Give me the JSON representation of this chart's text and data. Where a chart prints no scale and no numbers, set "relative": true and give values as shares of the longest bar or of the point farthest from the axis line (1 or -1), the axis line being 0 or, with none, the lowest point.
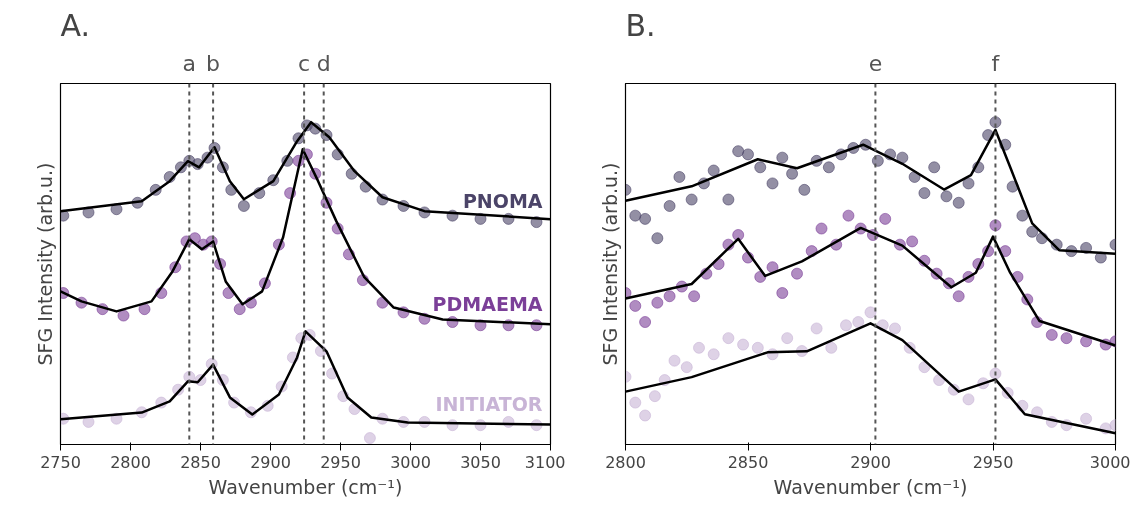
{
  "chart_data": [
    {
      "type": "scatter",
      "title": "A.",
      "xlabel": "Wavenumber (cm⁻¹)",
      "ylabel": "SFG Intensity (arb.u.)",
      "relative": true,
      "xlim": [
        2750,
        3100
      ],
      "xticks": [
        2750,
        2800,
        2850,
        2900,
        2950,
        3000,
        3050,
        3100
      ],
      "tick_labels": "x",
      "marker": "circle",
      "ref_lines": [
        {
          "axis": "x",
          "value": 2842,
          "label": "a",
          "line_style": "dashed",
          "color": "#555555"
        },
        {
          "axis": "x",
          "value": 2859,
          "label": "b",
          "line_style": "dashed",
          "color": "#555555"
        },
        {
          "axis": "x",
          "value": 2924,
          "label": "c",
          "line_style": "dashed",
          "color": "#555555"
        },
        {
          "axis": "x",
          "value": 2938,
          "label": "d",
          "line_style": "dashed",
          "color": "#555555"
        }
      ],
      "series": [
        {
          "name": "PNOMA",
          "color": "#4b4468",
          "x": [
            2752,
            2770,
            2790,
            2805,
            2818,
            2828,
            2836,
            2842,
            2848,
            2855,
            2860,
            2866,
            2872,
            2881,
            2892,
            2902,
            2912,
            2920,
            2926,
            2932,
            2940,
            2948,
            2958,
            2968,
            2980,
            2995,
            3010,
            3030,
            3050,
            3070,
            3090
          ],
          "values": [
            0.71,
            0.72,
            0.73,
            0.75,
            0.79,
            0.83,
            0.86,
            0.88,
            0.87,
            0.89,
            0.92,
            0.86,
            0.79,
            0.74,
            0.78,
            0.82,
            0.88,
            0.95,
            0.99,
            0.98,
            0.96,
            0.9,
            0.84,
            0.8,
            0.76,
            0.74,
            0.72,
            0.71,
            0.7,
            0.7,
            0.69
          ]
        },
        {
          "name": "PDMAEMA",
          "color": "#7b3f98",
          "x": [
            2752,
            2765,
            2780,
            2795,
            2810,
            2822,
            2832,
            2840,
            2846,
            2852,
            2858,
            2864,
            2870,
            2878,
            2886,
            2896,
            2906,
            2914,
            2920,
            2926,
            2932,
            2940,
            2948,
            2956,
            2966,
            2980,
            2995,
            3010,
            3030,
            3050,
            3070,
            3090
          ],
          "values": [
            0.47,
            0.44,
            0.42,
            0.4,
            0.42,
            0.47,
            0.55,
            0.63,
            0.64,
            0.62,
            0.63,
            0.56,
            0.47,
            0.42,
            0.44,
            0.5,
            0.62,
            0.78,
            0.88,
            0.9,
            0.84,
            0.75,
            0.67,
            0.59,
            0.51,
            0.44,
            0.41,
            0.39,
            0.38,
            0.37,
            0.37,
            0.37
          ]
        },
        {
          "name": "INITIATOR",
          "color": "#c8b4d6",
          "x": [
            2752,
            2770,
            2790,
            2808,
            2822,
            2834,
            2842,
            2850,
            2858,
            2866,
            2874,
            2886,
            2898,
            2908,
            2916,
            2922,
            2928,
            2936,
            2944,
            2952,
            2960,
            2971,
            2980,
            2995,
            3010,
            3030,
            3050,
            3070,
            3090
          ],
          "values": [
            0.08,
            0.07,
            0.08,
            0.1,
            0.13,
            0.17,
            0.21,
            0.2,
            0.25,
            0.2,
            0.13,
            0.1,
            0.12,
            0.18,
            0.27,
            0.33,
            0.34,
            0.29,
            0.22,
            0.15,
            0.11,
            0.02,
            0.08,
            0.07,
            0.07,
            0.06,
            0.06,
            0.07,
            0.06
          ]
        },
        {
          "type": "line",
          "color": "#000000",
          "marker": "none",
          "x": [
            2750,
            2808,
            2828,
            2841,
            2849,
            2860,
            2871,
            2881,
            2902,
            2919,
            2929,
            2942,
            2960,
            2980,
            3010,
            3100
          ],
          "values": [
            0.724,
            0.755,
            0.817,
            0.879,
            0.86,
            0.922,
            0.817,
            0.761,
            0.817,
            0.941,
            1.0,
            0.953,
            0.848,
            0.767,
            0.724,
            0.699
          ]
        },
        {
          "type": "line",
          "color": "#000000",
          "marker": "none",
          "x": [
            2750,
            2765,
            2790,
            2815,
            2830,
            2842,
            2851,
            2859,
            2868,
            2880,
            2894,
            2909,
            2923,
            2934,
            2947,
            2967,
            2988,
            3023,
            3100
          ],
          "values": [
            0.475,
            0.444,
            0.413,
            0.444,
            0.537,
            0.637,
            0.606,
            0.63,
            0.506,
            0.435,
            0.475,
            0.643,
            0.916,
            0.817,
            0.693,
            0.519,
            0.425,
            0.388,
            0.373
          ]
        },
        {
          "type": "line",
          "color": "#000000",
          "marker": "none",
          "x": [
            2750,
            2808,
            2828,
            2841,
            2848,
            2859,
            2871,
            2887,
            2906,
            2919,
            2925,
            2940,
            2955,
            2972,
            2998,
            3100
          ],
          "values": [
            0.078,
            0.099,
            0.134,
            0.196,
            0.193,
            0.248,
            0.146,
            0.093,
            0.155,
            0.27,
            0.351,
            0.289,
            0.146,
            0.084,
            0.068,
            0.062
          ]
        }
      ]
    },
    {
      "type": "scatter",
      "title": "B.",
      "xlabel": "Wavenumber (cm⁻¹)",
      "ylabel": "SFG Intensity (arb.u.)",
      "relative": true,
      "xlim": [
        2800,
        3000
      ],
      "xticks": [
        2800,
        2850,
        2900,
        2950,
        3000
      ],
      "tick_labels": "x",
      "marker": "circle",
      "ref_lines": [
        {
          "axis": "x",
          "value": 2902,
          "label": "e",
          "line_style": "dashed",
          "color": "#555555"
        },
        {
          "axis": "x",
          "value": 2951,
          "label": "f",
          "line_style": "dashed",
          "color": "#555555"
        }
      ],
      "series": [
        {
          "type": "scatter",
          "color": "#4b4468",
          "x": [
            2800,
            2804,
            2808,
            2813,
            2818,
            2822,
            2827,
            2832,
            2836,
            2842,
            2846,
            2850,
            2855,
            2860,
            2864,
            2868,
            2873,
            2878,
            2883,
            2888,
            2893,
            2898,
            2903,
            2908,
            2913,
            2918,
            2922,
            2926,
            2931,
            2936,
            2940,
            2944,
            2948,
            2951,
            2955,
            2958,
            2962,
            2966,
            2970,
            2976,
            2982,
            2988,
            2994,
            3000
          ],
          "values": [
            0.79,
            0.71,
            0.7,
            0.64,
            0.74,
            0.83,
            0.76,
            0.81,
            0.85,
            0.76,
            0.91,
            0.9,
            0.86,
            0.81,
            0.89,
            0.84,
            0.79,
            0.88,
            0.86,
            0.9,
            0.92,
            0.93,
            0.88,
            0.9,
            0.89,
            0.83,
            0.78,
            0.86,
            0.77,
            0.75,
            0.81,
            0.86,
            0.96,
            1.0,
            0.93,
            0.8,
            0.71,
            0.66,
            0.64,
            0.62,
            0.6,
            0.61,
            0.58,
            0.62
          ]
        },
        {
          "type": "scatter",
          "color": "#7b3f98",
          "x": [
            2800,
            2804,
            2808,
            2813,
            2818,
            2823,
            2828,
            2833,
            2838,
            2842,
            2846,
            2850,
            2855,
            2860,
            2864,
            2870,
            2876,
            2880,
            2886,
            2891,
            2896,
            2901,
            2906,
            2912,
            2917,
            2922,
            2927,
            2932,
            2936,
            2940,
            2944,
            2948,
            2951,
            2955,
            2960,
            2964,
            2968,
            2974,
            2980,
            2988,
            2996,
            3000
          ],
          "values": [
            0.47,
            0.43,
            0.38,
            0.44,
            0.46,
            0.49,
            0.46,
            0.53,
            0.56,
            0.62,
            0.65,
            0.58,
            0.52,
            0.55,
            0.47,
            0.53,
            0.6,
            0.67,
            0.62,
            0.71,
            0.67,
            0.65,
            0.7,
            0.62,
            0.63,
            0.57,
            0.53,
            0.5,
            0.46,
            0.52,
            0.56,
            0.6,
            0.68,
            0.6,
            0.52,
            0.45,
            0.38,
            0.34,
            0.33,
            0.32,
            0.31,
            0.32
          ]
        },
        {
          "type": "scatter",
          "color": "#c8b4d6",
          "x": [
            2800,
            2804,
            2808,
            2812,
            2816,
            2820,
            2825,
            2830,
            2836,
            2842,
            2848,
            2854,
            2860,
            2866,
            2872,
            2878,
            2884,
            2890,
            2895,
            2900,
            2905,
            2910,
            2916,
            2922,
            2928,
            2934,
            2940,
            2946,
            2951,
            2956,
            2962,
            2968,
            2974,
            2980,
            2988,
            2996,
            3000
          ],
          "values": [
            0.21,
            0.13,
            0.09,
            0.15,
            0.2,
            0.26,
            0.24,
            0.3,
            0.28,
            0.33,
            0.31,
            0.3,
            0.28,
            0.33,
            0.29,
            0.36,
            0.3,
            0.37,
            0.38,
            0.41,
            0.37,
            0.36,
            0.3,
            0.24,
            0.2,
            0.17,
            0.14,
            0.19,
            0.22,
            0.16,
            0.12,
            0.1,
            0.07,
            0.06,
            0.08,
            0.05,
            0.06
          ]
        },
        {
          "type": "line",
          "color": "#000000",
          "marker": "none",
          "x": [
            2800,
            2827,
            2854,
            2870,
            2897,
            2913,
            2930,
            2941,
            2951,
            2957,
            2966,
            2977,
            3000
          ],
          "values": [
            0.756,
            0.801,
            0.885,
            0.857,
            0.93,
            0.871,
            0.791,
            0.836,
            0.976,
            0.861,
            0.686,
            0.603,
            0.592
          ]
        },
        {
          "type": "line",
          "color": "#000000",
          "marker": "none",
          "x": [
            2800,
            2827,
            2846,
            2857,
            2872,
            2896,
            2913,
            2933,
            2943,
            2950,
            2957,
            2969,
            3000
          ],
          "values": [
            0.453,
            0.498,
            0.638,
            0.523,
            0.568,
            0.672,
            0.617,
            0.488,
            0.533,
            0.645,
            0.533,
            0.383,
            0.307
          ]
        },
        {
          "type": "line",
          "color": "#000000",
          "marker": "none",
          "x": [
            2800,
            2827,
            2858,
            2874,
            2900,
            2913,
            2936,
            2951,
            2963,
            3000
          ],
          "values": [
            0.164,
            0.209,
            0.286,
            0.289,
            0.376,
            0.324,
            0.164,
            0.202,
            0.094,
            0.035
          ]
        }
      ]
    }
  ]
}
